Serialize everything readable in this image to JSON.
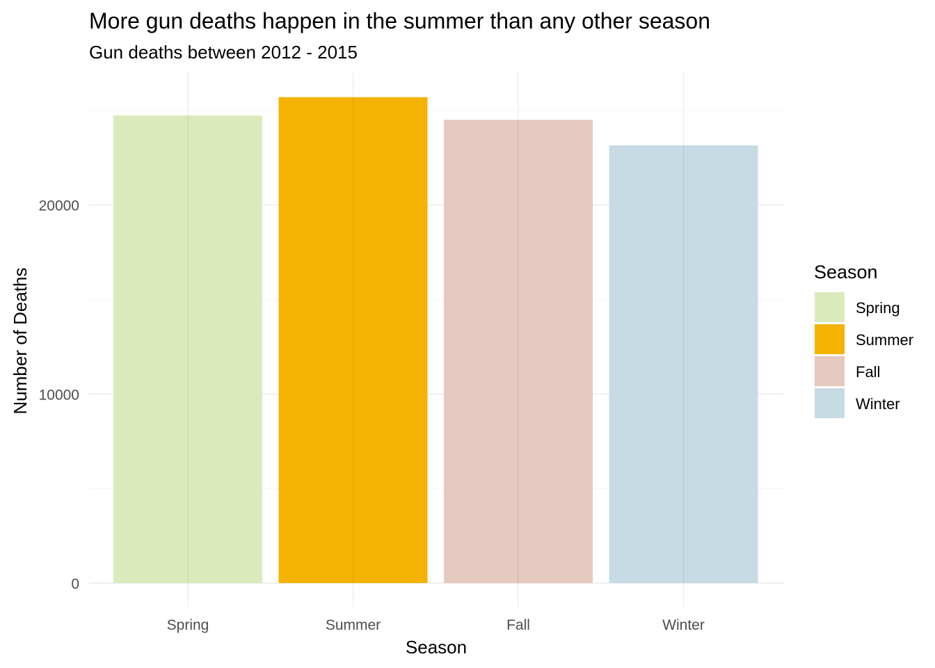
{
  "chart_data": {
    "type": "bar",
    "title": "More gun deaths happen in the summer than any other season",
    "subtitle": "Gun deaths between 2012 - 2015",
    "xlabel": "Season",
    "ylabel": "Number of Deaths",
    "categories": [
      "Spring",
      "Summer",
      "Fall",
      "Winter"
    ],
    "values": [
      24730,
      25700,
      24500,
      23150
    ],
    "colors": [
      "#dbeabb",
      "#f5b301",
      "#e5c8be",
      "#c7dbe4"
    ],
    "ylim": [
      0,
      27000
    ],
    "yticks": [
      0,
      10000,
      20000
    ],
    "yticks_labels": [
      "0",
      "10000",
      "20000"
    ],
    "grid": true,
    "legend": {
      "title": "Season",
      "placement": "right",
      "entries": [
        "Spring",
        "Summer",
        "Fall",
        "Winter"
      ]
    }
  }
}
